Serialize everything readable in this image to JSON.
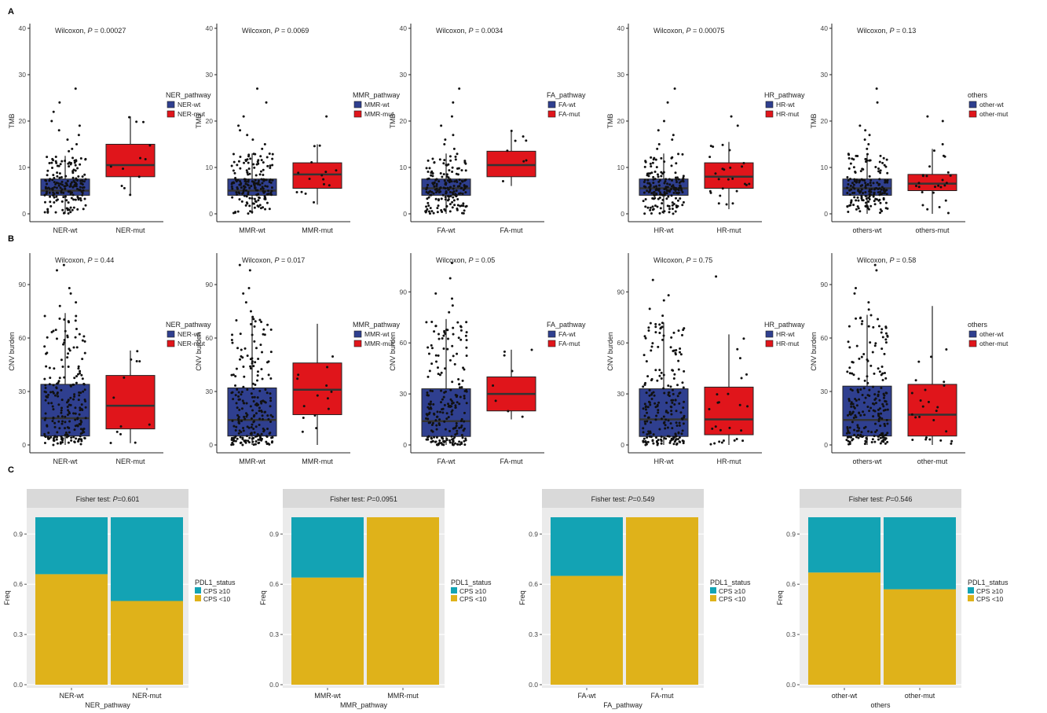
{
  "figure": {
    "panel_labels": [
      "A",
      "B",
      "C"
    ]
  },
  "colors": {
    "wt_fill": "#2f3f8f",
    "mut_fill": "#e0151b",
    "high_fill": "#13a3b4",
    "low_fill": "#dfb21a",
    "panel_bg": "#ebebeb",
    "strip_bg": "#d9d9d9",
    "point": "#111111",
    "median": "#333333"
  },
  "chart_data": [
    {
      "id": "A1",
      "type": "box",
      "ylabel": "TMB",
      "ylim": [
        0,
        40
      ],
      "yticks": [
        0,
        10,
        20,
        30,
        40
      ],
      "categories": [
        "NER-wt",
        "NER-mut"
      ],
      "test_label": "Wilcoxon, ",
      "p_label": "P = 0.00027",
      "legend_title": "NER_pathway",
      "legend_labels": [
        "NER-wt",
        "NER-mut"
      ],
      "boxes": [
        {
          "q1": 4,
          "median": 5,
          "q3": 7.5,
          "min": 0,
          "max": 12.5
        },
        {
          "q1": 8,
          "median": 10.5,
          "q3": 15,
          "min": 4,
          "max": 21
        }
      ],
      "n_points": [
        180,
        12
      ],
      "outliers": [
        [
          13.5,
          14,
          15,
          16,
          17,
          18,
          19,
          20,
          22,
          24,
          27
        ],
        []
      ]
    },
    {
      "id": "A2",
      "type": "box",
      "ylabel": "TMB",
      "ylim": [
        0,
        40
      ],
      "yticks": [
        0,
        10,
        20,
        30,
        40
      ],
      "categories": [
        "MMR-wt",
        "MMR-mut"
      ],
      "test_label": "Wilcoxon, ",
      "p_label": "P = 0.0069",
      "legend_title": "MMR_pathway",
      "legend_labels": [
        "MMR-wt",
        "MMR-mut"
      ],
      "boxes": [
        {
          "q1": 4,
          "median": 5,
          "q3": 7.5,
          "min": 0,
          "max": 13
        },
        {
          "q1": 5.5,
          "median": 8.5,
          "q3": 11,
          "min": 2,
          "max": 15
        }
      ],
      "n_points": [
        180,
        15
      ],
      "outliers": [
        [
          14,
          15,
          16,
          17,
          18,
          19,
          21,
          24,
          27
        ],
        [
          21
        ]
      ]
    },
    {
      "id": "A3",
      "type": "box",
      "ylabel": "TMB",
      "ylim": [
        0,
        40
      ],
      "yticks": [
        0,
        10,
        20,
        30,
        40
      ],
      "categories": [
        "FA-wt",
        "FA-mut"
      ],
      "test_label": "Wilcoxon, ",
      "p_label": "P = 0.0034",
      "legend_title": "FA_pathway",
      "legend_labels": [
        "FA-wt",
        "FA-mut"
      ],
      "boxes": [
        {
          "q1": 4,
          "median": 5.5,
          "q3": 7.5,
          "min": 0,
          "max": 13
        },
        {
          "q1": 8,
          "median": 10.5,
          "q3": 13.5,
          "min": 6,
          "max": 18
        }
      ],
      "n_points": [
        185,
        8
      ],
      "outliers": [
        [
          14,
          15,
          16,
          17,
          19,
          21,
          24,
          27
        ],
        []
      ]
    },
    {
      "id": "A4",
      "type": "box",
      "ylabel": "TMB",
      "ylim": [
        0,
        40
      ],
      "yticks": [
        0,
        10,
        20,
        30,
        40
      ],
      "categories": [
        "HR-wt",
        "HR-mut"
      ],
      "test_label": "Wilcoxon, ",
      "p_label": "P = 0.00075",
      "legend_title": "HR_pathway",
      "legend_labels": [
        "HR-wt",
        "HR-mut"
      ],
      "boxes": [
        {
          "q1": 4,
          "median": 5.5,
          "q3": 7.5,
          "min": 0,
          "max": 13
        },
        {
          "q1": 5.5,
          "median": 8,
          "q3": 11,
          "min": 1,
          "max": 15.5
        }
      ],
      "n_points": [
        180,
        25
      ],
      "outliers": [
        [
          14,
          15,
          16,
          17,
          18,
          20,
          24,
          27
        ],
        [
          19,
          21
        ]
      ]
    },
    {
      "id": "A5",
      "type": "box",
      "ylabel": "TMB",
      "ylim": [
        0,
        40
      ],
      "yticks": [
        0,
        10,
        20,
        30,
        40
      ],
      "categories": [
        "others-wt",
        "others-mut"
      ],
      "test_label": "Wilcoxon, ",
      "p_label": "P = 0.13",
      "legend_title": "others",
      "legend_labels": [
        "other-wt",
        "other-mut"
      ],
      "boxes": [
        {
          "q1": 4,
          "median": 5.5,
          "q3": 7.5,
          "min": 0,
          "max": 13
        },
        {
          "q1": 5,
          "median": 6.5,
          "q3": 8.5,
          "min": 0,
          "max": 14
        }
      ],
      "n_points": [
        180,
        25
      ],
      "outliers": [
        [
          14,
          15,
          16,
          17,
          18,
          19,
          24,
          27
        ],
        [
          15,
          20,
          21
        ]
      ]
    },
    {
      "id": "B1",
      "type": "box",
      "ylabel": "CNV burden",
      "ylim": [
        0,
        105
      ],
      "yticks": [
        0,
        30,
        60,
        90
      ],
      "categories": [
        "NER-wt",
        "NER-mut"
      ],
      "test_label": "Wilcoxon, ",
      "p_label": "P = 0.44",
      "legend_title": "NER_pathway",
      "legend_labels": [
        "NER-wt",
        "NER-mut"
      ],
      "boxes": [
        {
          "q1": 5,
          "median": 15,
          "q3": 34,
          "min": 0,
          "max": 74
        },
        {
          "q1": 9,
          "median": 22,
          "q3": 39,
          "min": 1,
          "max": 53
        }
      ],
      "n_points": [
        220,
        12
      ],
      "outliers": [
        [
          78,
          80,
          85,
          88,
          98,
          101
        ],
        []
      ]
    },
    {
      "id": "B2",
      "type": "box",
      "ylabel": "CNV burden",
      "ylim": [
        0,
        105
      ],
      "yticks": [
        0,
        30,
        60,
        90
      ],
      "categories": [
        "MMR-wt",
        "MMR-mut"
      ],
      "test_label": "Wilcoxon, ",
      "p_label": "P = 0.017",
      "legend_title": "MMR_pathway",
      "legend_labels": [
        "MMR-wt",
        "MMR-mut"
      ],
      "boxes": [
        {
          "q1": 5,
          "median": 14,
          "q3": 32,
          "min": 0,
          "max": 72
        },
        {
          "q1": 17,
          "median": 31,
          "q3": 46,
          "min": 0,
          "max": 68
        }
      ],
      "n_points": [
        220,
        14
      ],
      "outliers": [
        [
          75,
          80,
          85,
          88,
          98,
          101
        ],
        []
      ]
    },
    {
      "id": "B3",
      "type": "box",
      "ylabel": "CNV burden",
      "ylim": [
        0,
        110
      ],
      "yticks": [
        0,
        30,
        60,
        90
      ],
      "categories": [
        "FA-wt",
        "FA-mut"
      ],
      "test_label": "Wilcoxon, ",
      "p_label": "P = 0.05",
      "legend_title": "FA_pathway",
      "legend_labels": [
        "FA-wt",
        "FA-mut"
      ],
      "boxes": [
        {
          "q1": 5,
          "median": 14,
          "q3": 33,
          "min": 0,
          "max": 74
        },
        {
          "q1": 20,
          "median": 30,
          "q3": 40,
          "min": 15,
          "max": 56
        }
      ],
      "n_points": [
        220,
        8
      ],
      "outliers": [
        [
          78,
          82,
          86,
          89,
          98,
          107
        ],
        []
      ]
    },
    {
      "id": "B4",
      "type": "box",
      "ylabel": "CNV burden",
      "ylim": [
        0,
        110
      ],
      "yticks": [
        0,
        30,
        60,
        90
      ],
      "categories": [
        "HR-wt",
        "HR-mut"
      ],
      "test_label": "Wilcoxon, ",
      "p_label": "P = 0.75",
      "legend_title": "HR_pathway",
      "legend_labels": [
        "HR-wt",
        "HR-mut"
      ],
      "boxes": [
        {
          "q1": 5,
          "median": 15,
          "q3": 33,
          "min": 0,
          "max": 72
        },
        {
          "q1": 6,
          "median": 15,
          "q3": 34,
          "min": 0,
          "max": 65
        }
      ],
      "n_points": [
        215,
        25
      ],
      "outliers": [
        [
          76,
          80,
          85,
          88,
          97
        ],
        [
          99
        ]
      ]
    },
    {
      "id": "B5",
      "type": "box",
      "ylabel": "CNV burden",
      "ylim": [
        0,
        105
      ],
      "yticks": [
        0,
        30,
        60,
        90
      ],
      "categories": [
        "others-wt",
        "other-mut"
      ],
      "test_label": "Wilcoxon, ",
      "p_label": "P = 0.58",
      "legend_title": "others",
      "legend_labels": [
        "other-wt",
        "other-mut"
      ],
      "boxes": [
        {
          "q1": 5,
          "median": 14,
          "q3": 33,
          "min": 0,
          "max": 73
        },
        {
          "q1": 5,
          "median": 17,
          "q3": 34,
          "min": 0,
          "max": 78
        }
      ],
      "n_points": [
        215,
        25
      ],
      "outliers": [
        [
          76,
          80,
          85,
          88,
          98,
          101
        ],
        []
      ]
    },
    {
      "id": "C1",
      "type": "stacked_bar",
      "ylabel": "Freq",
      "xlabel": "NER_pathway",
      "ylim": [
        0,
        1
      ],
      "yticks": [
        0,
        0.3,
        0.6,
        0.9
      ],
      "ytick_labels": [
        "0.0",
        "0.3",
        "0.6",
        "0.9"
      ],
      "strip_label": "Fisher test: ",
      "p_label": "P=0.601",
      "categories": [
        "NER-wt",
        "NER-mut"
      ],
      "legend_title": "PDL1_status",
      "legend_labels": [
        "CPS ≥10",
        "CPS <10"
      ],
      "series": [
        {
          "name": "CPS ≥10",
          "values": [
            0.34,
            0.5
          ]
        },
        {
          "name": "CPS <10",
          "values": [
            0.66,
            0.5
          ]
        }
      ]
    },
    {
      "id": "C2",
      "type": "stacked_bar",
      "ylabel": "Freq",
      "xlabel": "MMR_pathway",
      "ylim": [
        0,
        1
      ],
      "yticks": [
        0,
        0.3,
        0.6,
        0.9
      ],
      "ytick_labels": [
        "0.0",
        "0.3",
        "0.6",
        "0.9"
      ],
      "strip_label": "Fisher test: ",
      "p_label": "P=0.0951",
      "categories": [
        "MMR-wt",
        "MMR-mut"
      ],
      "legend_title": "PDL1_status",
      "legend_labels": [
        "CPS ≥10",
        "CPS <10"
      ],
      "series": [
        {
          "name": "CPS ≥10",
          "values": [
            0.36,
            0.0
          ]
        },
        {
          "name": "CPS <10",
          "values": [
            0.64,
            1.0
          ]
        }
      ]
    },
    {
      "id": "C3",
      "type": "stacked_bar",
      "ylabel": "Freq",
      "xlabel": "FA_pathway",
      "ylim": [
        0,
        1
      ],
      "yticks": [
        0,
        0.3,
        0.6,
        0.9
      ],
      "ytick_labels": [
        "0.0",
        "0.3",
        "0.6",
        "0.9"
      ],
      "strip_label": "Fisher test: ",
      "p_label": "P=0.549",
      "categories": [
        "FA-wt",
        "FA-mut"
      ],
      "legend_title": "PDL1_status",
      "legend_labels": [
        "CPS ≥10",
        "CPS <10"
      ],
      "series": [
        {
          "name": "CPS ≥10",
          "values": [
            0.35,
            0.0
          ]
        },
        {
          "name": "CPS <10",
          "values": [
            0.65,
            1.0
          ]
        }
      ]
    },
    {
      "id": "C4",
      "type": "stacked_bar",
      "ylabel": "Freq",
      "xlabel": "others",
      "ylim": [
        0,
        1
      ],
      "yticks": [
        0,
        0.3,
        0.6,
        0.9
      ],
      "ytick_labels": [
        "0.0",
        "0.3",
        "0.6",
        "0.9"
      ],
      "strip_label": "Fisher test: ",
      "p_label": "P=0.546",
      "categories": [
        "other-wt",
        "other-mut"
      ],
      "legend_title": "PDL1_status",
      "legend_labels": [
        "CPS ≥10",
        "CPS <10"
      ],
      "series": [
        {
          "name": "CPS ≥10",
          "values": [
            0.33,
            0.43
          ]
        },
        {
          "name": "CPS <10",
          "values": [
            0.67,
            0.57
          ]
        }
      ]
    }
  ]
}
